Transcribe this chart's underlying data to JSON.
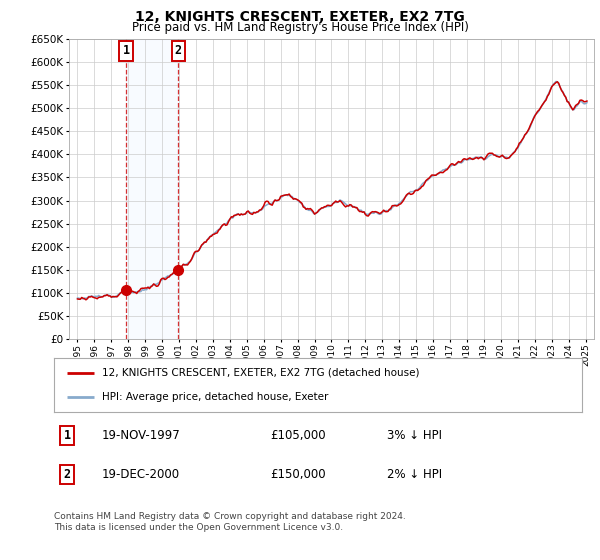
{
  "title": "12, KNIGHTS CRESCENT, EXETER, EX2 7TG",
  "subtitle": "Price paid vs. HM Land Registry's House Price Index (HPI)",
  "ylim": [
    0,
    650000
  ],
  "yticks": [
    0,
    50000,
    100000,
    150000,
    200000,
    250000,
    300000,
    350000,
    400000,
    450000,
    500000,
    550000,
    600000,
    650000
  ],
  "xlim_start": 1994.5,
  "xlim_end": 2025.5,
  "transaction1": {
    "date": "19-NOV-1997",
    "price": 105000,
    "year": 1997.88,
    "label": "1",
    "hpi_pct": "3% ↓ HPI"
  },
  "transaction2": {
    "date": "19-DEC-2000",
    "price": 150000,
    "year": 2000.96,
    "label": "2",
    "hpi_pct": "2% ↓ HPI"
  },
  "legend_line1": "12, KNIGHTS CRESCENT, EXETER, EX2 7TG (detached house)",
  "legend_line2": "HPI: Average price, detached house, Exeter",
  "copyright": "Contains HM Land Registry data © Crown copyright and database right 2024.\nThis data is licensed under the Open Government Licence v3.0.",
  "line_color_red": "#cc0000",
  "line_color_blue": "#88aacc",
  "marker_color": "#cc0000",
  "vline_color": "#cc0000",
  "shade_color": "#ddeeff",
  "background_color": "#ffffff",
  "grid_color": "#cccccc",
  "box_color": "#cc0000",
  "title_fontsize": 10,
  "subtitle_fontsize": 8.5,
  "hpi_anchors": {
    "1995.0": 88000,
    "1996.0": 91000,
    "1997.0": 94000,
    "1997.88": 105000,
    "1998.5": 100000,
    "1999.5": 115000,
    "2000.96": 150000,
    "2001.5": 165000,
    "2002.5": 210000,
    "2003.5": 245000,
    "2004.5": 270000,
    "2005.5": 275000,
    "2006.5": 295000,
    "2007.5": 315000,
    "2008.5": 285000,
    "2009.0": 272000,
    "2009.5": 285000,
    "2010.5": 300000,
    "2011.5": 285000,
    "2012.0": 272000,
    "2012.5": 270000,
    "2013.5": 282000,
    "2014.5": 310000,
    "2015.0": 325000,
    "2016.0": 355000,
    "2016.5": 365000,
    "2017.5": 382000,
    "2018.5": 392000,
    "2018.8": 398000,
    "2019.0": 390000,
    "2019.5": 400000,
    "2020.0": 395000,
    "2020.5": 390000,
    "2021.0": 415000,
    "2021.5": 445000,
    "2022.0": 480000,
    "2022.5": 510000,
    "2022.8": 530000,
    "2023.0": 545000,
    "2023.3": 560000,
    "2023.5": 545000,
    "2023.7": 530000,
    "2024.0": 510000,
    "2024.3": 495000,
    "2024.5": 505000,
    "2024.7": 515000,
    "2025.0": 510000
  }
}
